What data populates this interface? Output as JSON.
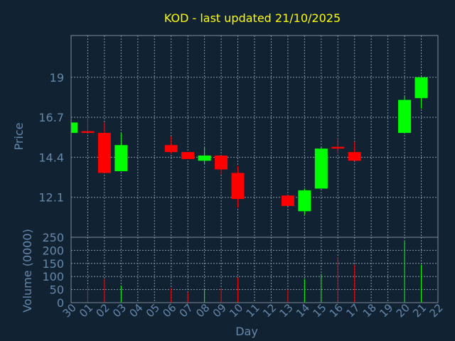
{
  "chart_data": {
    "type": "candlestick",
    "title": "KOD - last updated 21/10/2025",
    "price_panel": {
      "ylabel": "Price",
      "ylim": [
        9.8,
        21.4
      ],
      "yticks": [
        12.1,
        14.4,
        16.7,
        19
      ],
      "ytick_labels": [
        "12.1",
        "14.4",
        "16.7",
        "19"
      ]
    },
    "volume_panel": {
      "ylabel": "Volume (0000)",
      "ylim": [
        0,
        250
      ],
      "yticks": [
        0,
        50,
        100,
        150,
        200,
        250
      ],
      "ytick_labels": [
        "0",
        "50",
        "100",
        "150",
        "200",
        "250"
      ]
    },
    "xlabel": "Day",
    "x_tick_labels": [
      "30",
      "01",
      "02",
      "03",
      "04",
      "05",
      "06",
      "07",
      "08",
      "09",
      "10",
      "11",
      "12",
      "13",
      "14",
      "15",
      "16",
      "17",
      "18",
      "19",
      "20",
      "21",
      "22"
    ],
    "colors": {
      "up": "#00ff00",
      "down": "#ff0000",
      "title": "#ffff00",
      "axis_text": "#6688aa",
      "background": "#112233"
    },
    "candles": [
      {
        "day": "30",
        "open": 15.8,
        "high": 16.4,
        "low": 15.8,
        "close": 16.4,
        "volume": 0
      },
      {
        "day": "01",
        "open": 15.9,
        "high": 16.7,
        "low": 15.8,
        "close": 15.8,
        "volume": 65
      },
      {
        "day": "02",
        "open": 15.8,
        "high": 16.4,
        "low": 13.5,
        "close": 13.5,
        "volume": 90
      },
      {
        "day": "03",
        "open": 13.6,
        "high": 15.8,
        "low": 13.6,
        "close": 15.1,
        "volume": 65
      },
      {
        "day": "06",
        "open": 15.1,
        "high": 15.6,
        "low": 14.6,
        "close": 14.7,
        "volume": 55
      },
      {
        "day": "07",
        "open": 14.7,
        "high": 14.7,
        "low": 14.3,
        "close": 14.3,
        "volume": 40
      },
      {
        "day": "08",
        "open": 14.2,
        "high": 15.0,
        "low": 14.0,
        "close": 14.5,
        "volume": 50
      },
      {
        "day": "09",
        "open": 14.5,
        "high": 14.5,
        "low": 13.4,
        "close": 13.7,
        "volume": 55
      },
      {
        "day": "10",
        "open": 13.5,
        "high": 13.9,
        "low": 11.5,
        "close": 12.0,
        "volume": 95
      },
      {
        "day": "13",
        "open": 12.2,
        "high": 12.2,
        "low": 11.6,
        "close": 11.6,
        "volume": 50
      },
      {
        "day": "14",
        "open": 11.3,
        "high": 12.6,
        "low": 11.1,
        "close": 12.5,
        "volume": 90
      },
      {
        "day": "15",
        "open": 12.6,
        "high": 15.0,
        "low": 12.6,
        "close": 14.9,
        "volume": 110
      },
      {
        "day": "16",
        "open": 15.0,
        "high": 15.5,
        "low": 14.6,
        "close": 14.9,
        "volume": 175
      },
      {
        "day": "17",
        "open": 14.7,
        "high": 15.3,
        "low": 14.2,
        "close": 14.2,
        "volume": 145
      },
      {
        "day": "20",
        "open": 15.8,
        "high": 17.9,
        "low": 15.8,
        "close": 17.7,
        "volume": 235
      },
      {
        "day": "21",
        "open": 17.8,
        "high": 19.0,
        "low": 17.2,
        "close": 19.0,
        "volume": 145
      }
    ]
  }
}
